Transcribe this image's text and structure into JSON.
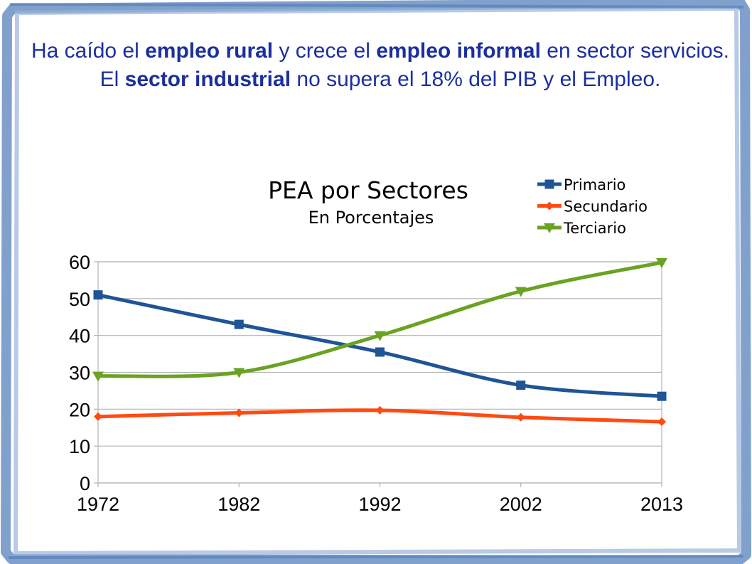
{
  "headline": {
    "p1": "Ha caído el ",
    "b1": "empleo rural",
    "p2": " y crece el ",
    "b2": "empleo informal",
    "p3": " en sector servicios. El ",
    "b3": "sector industrial",
    "p4": " no supera el 18% del PIB y el Empleo."
  },
  "chart_data": {
    "type": "line",
    "title": "PEA por Sectores",
    "subtitle": "En Porcentajes",
    "xlabel": "",
    "ylabel": "",
    "categories": [
      "1972",
      "1982",
      "1992",
      "2002",
      "2013"
    ],
    "ylim": [
      0,
      60
    ],
    "yticks": [
      0,
      10,
      20,
      30,
      40,
      50,
      60
    ],
    "grid": true,
    "legend_position": "top-right",
    "series": [
      {
        "name": "Primario",
        "values": [
          51,
          43,
          35.5,
          26.5,
          23.5
        ],
        "color": "#1f5496",
        "marker": "square"
      },
      {
        "name": "Secundario",
        "values": [
          18,
          19,
          19.7,
          17.8,
          16.6
        ],
        "color": "#ff4a12",
        "marker": "diamond"
      },
      {
        "name": "Terciario",
        "values": [
          29,
          30,
          40,
          52,
          59.8
        ],
        "color": "#6aa222",
        "marker": "triangle-down"
      }
    ]
  }
}
